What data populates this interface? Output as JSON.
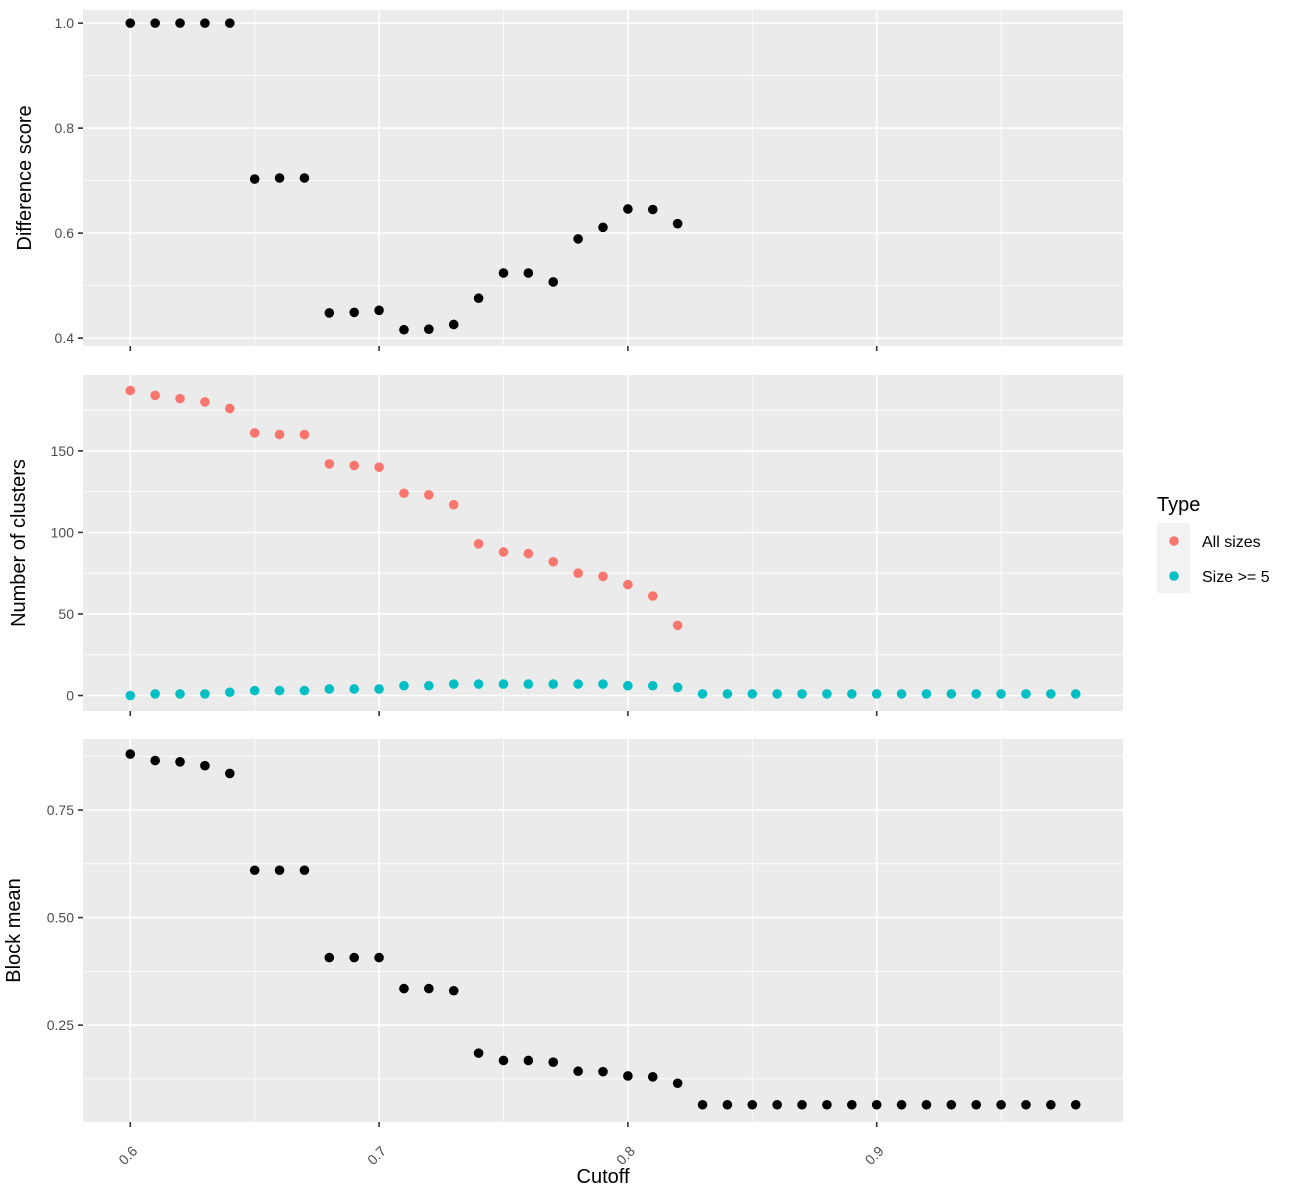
{
  "chart_data": [
    {
      "type": "scatter",
      "ylabel": "Difference score",
      "ylim": [
        0.385,
        1.025
      ],
      "yticks": [
        0.4,
        0.6,
        0.8,
        1.0
      ],
      "ytick_labels": [
        "0.4",
        "0.6",
        "0.8",
        "1.0"
      ],
      "grid": true,
      "series": [
        {
          "color": "#000000",
          "points": [
            [
              0.6,
              1.0
            ],
            [
              0.61,
              1.0
            ],
            [
              0.62,
              1.0
            ],
            [
              0.63,
              1.0
            ],
            [
              0.64,
              1.0
            ],
            [
              0.65,
              0.703
            ],
            [
              0.66,
              0.705
            ],
            [
              0.67,
              0.705
            ],
            [
              0.68,
              0.448
            ],
            [
              0.69,
              0.449
            ],
            [
              0.7,
              0.453
            ],
            [
              0.71,
              0.416
            ],
            [
              0.72,
              0.417
            ],
            [
              0.73,
              0.426
            ],
            [
              0.74,
              0.476
            ],
            [
              0.75,
              0.524
            ],
            [
              0.76,
              0.524
            ],
            [
              0.77,
              0.507
            ],
            [
              0.78,
              0.589
            ],
            [
              0.79,
              0.611
            ],
            [
              0.8,
              0.646
            ],
            [
              0.81,
              0.645
            ],
            [
              0.82,
              0.618
            ]
          ]
        }
      ]
    },
    {
      "type": "scatter",
      "ylabel": "Number of clusters",
      "ylim": [
        -9.5,
        196.5
      ],
      "yticks": [
        0,
        50,
        100,
        150
      ],
      "ytick_labels": [
        "0",
        "50",
        "100",
        "150"
      ],
      "grid": true,
      "legend": {
        "title": "Type",
        "position": "right"
      },
      "series": [
        {
          "name": "All sizes",
          "color": "#F8766D",
          "points": [
            [
              0.6,
              187
            ],
            [
              0.61,
              184
            ],
            [
              0.62,
              182
            ],
            [
              0.63,
              180
            ],
            [
              0.64,
              176
            ],
            [
              0.65,
              161
            ],
            [
              0.66,
              160
            ],
            [
              0.67,
              160
            ],
            [
              0.68,
              142
            ],
            [
              0.69,
              141
            ],
            [
              0.7,
              140
            ],
            [
              0.71,
              124
            ],
            [
              0.72,
              123
            ],
            [
              0.73,
              117
            ],
            [
              0.74,
              93
            ],
            [
              0.75,
              88
            ],
            [
              0.76,
              87
            ],
            [
              0.77,
              82
            ],
            [
              0.78,
              75
            ],
            [
              0.79,
              73
            ],
            [
              0.8,
              68
            ],
            [
              0.81,
              61
            ],
            [
              0.82,
              43
            ]
          ]
        },
        {
          "name": "Size >= 5",
          "color": "#00BFC4",
          "points": [
            [
              0.6,
              0
            ],
            [
              0.61,
              1
            ],
            [
              0.62,
              1
            ],
            [
              0.63,
              1
            ],
            [
              0.64,
              2
            ],
            [
              0.65,
              3
            ],
            [
              0.66,
              3
            ],
            [
              0.67,
              3
            ],
            [
              0.68,
              4
            ],
            [
              0.69,
              4
            ],
            [
              0.7,
              4
            ],
            [
              0.71,
              6
            ],
            [
              0.72,
              6
            ],
            [
              0.73,
              7
            ],
            [
              0.74,
              7
            ],
            [
              0.75,
              7
            ],
            [
              0.76,
              7
            ],
            [
              0.77,
              7
            ],
            [
              0.78,
              7
            ],
            [
              0.79,
              7
            ],
            [
              0.8,
              6
            ],
            [
              0.81,
              6
            ],
            [
              0.82,
              5
            ],
            [
              0.83,
              1
            ],
            [
              0.84,
              1
            ],
            [
              0.85,
              1
            ],
            [
              0.86,
              1
            ],
            [
              0.87,
              1
            ],
            [
              0.88,
              1
            ],
            [
              0.89,
              1
            ],
            [
              0.9,
              1
            ],
            [
              0.91,
              1
            ],
            [
              0.92,
              1
            ],
            [
              0.93,
              1
            ],
            [
              0.94,
              1
            ],
            [
              0.95,
              1
            ],
            [
              0.96,
              1
            ],
            [
              0.97,
              1
            ],
            [
              0.98,
              1
            ]
          ]
        }
      ]
    },
    {
      "type": "scatter",
      "ylabel": "Block mean",
      "xlabel": "Cutoff",
      "ylim": [
        0.025,
        0.915
      ],
      "yticks": [
        0.25,
        0.5,
        0.75
      ],
      "ytick_labels": [
        "0.25",
        "0.50",
        "0.75"
      ],
      "grid": true,
      "series": [
        {
          "color": "#000000",
          "points": [
            [
              0.6,
              0.88
            ],
            [
              0.61,
              0.865
            ],
            [
              0.62,
              0.862
            ],
            [
              0.63,
              0.853
            ],
            [
              0.64,
              0.835
            ],
            [
              0.65,
              0.61
            ],
            [
              0.66,
              0.61
            ],
            [
              0.67,
              0.61
            ],
            [
              0.68,
              0.407
            ],
            [
              0.69,
              0.407
            ],
            [
              0.7,
              0.407
            ],
            [
              0.71,
              0.335
            ],
            [
              0.72,
              0.335
            ],
            [
              0.73,
              0.33
            ],
            [
              0.74,
              0.185
            ],
            [
              0.75,
              0.168
            ],
            [
              0.76,
              0.168
            ],
            [
              0.77,
              0.164
            ],
            [
              0.78,
              0.143
            ],
            [
              0.79,
              0.142
            ],
            [
              0.8,
              0.132
            ],
            [
              0.81,
              0.13
            ],
            [
              0.82,
              0.115
            ],
            [
              0.83,
              0.065
            ],
            [
              0.84,
              0.065
            ],
            [
              0.85,
              0.065
            ],
            [
              0.86,
              0.065
            ],
            [
              0.87,
              0.065
            ],
            [
              0.88,
              0.065
            ],
            [
              0.89,
              0.065
            ],
            [
              0.9,
              0.065
            ],
            [
              0.91,
              0.065
            ],
            [
              0.92,
              0.065
            ],
            [
              0.93,
              0.065
            ],
            [
              0.94,
              0.065
            ],
            [
              0.95,
              0.065
            ],
            [
              0.96,
              0.065
            ],
            [
              0.97,
              0.065
            ],
            [
              0.98,
              0.065
            ]
          ]
        }
      ]
    }
  ],
  "x_axis": {
    "label": "Cutoff",
    "xlim": [
      0.581,
      0.999
    ],
    "ticks": [
      0.6,
      0.7,
      0.8,
      0.9
    ],
    "tick_labels": [
      "0.6",
      "0.7",
      "0.8",
      "0.9"
    ],
    "tick_label_rotation": "-45deg",
    "shared": true
  },
  "legend": {
    "title": "Type",
    "items": [
      {
        "label": "All sizes",
        "color": "#F8766D"
      },
      {
        "label": "Size >= 5",
        "color": "#00BFC4"
      }
    ]
  }
}
